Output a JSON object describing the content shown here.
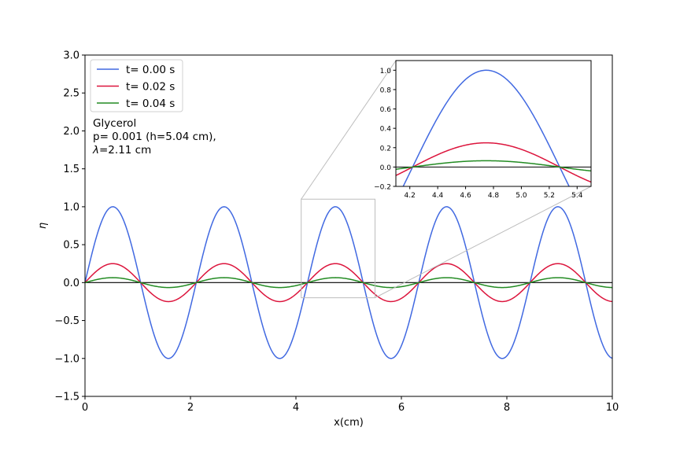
{
  "chart_data": {
    "type": "line",
    "xlabel": "x(cm)",
    "ylabel": "η",
    "xlim": [
      0,
      10
    ],
    "ylim": [
      -1.5,
      3.0
    ],
    "xticks": [
      0,
      2,
      4,
      6,
      8,
      10
    ],
    "yticks": [
      -1.5,
      -1.0,
      -0.5,
      0.0,
      0.5,
      1.0,
      1.5,
      2.0,
      2.5,
      3.0
    ],
    "xtick_labels": [
      "0",
      "2",
      "4",
      "6",
      "8",
      "10"
    ],
    "ytick_labels": [
      "−1.5",
      "−1.0",
      "−0.5",
      "0.0",
      "0.5",
      "1.0",
      "1.5",
      "2.0",
      "2.5",
      "3.0"
    ],
    "grid": false,
    "legend_position": "top-left",
    "baseline": 0,
    "wave": {
      "wavelength_cm": 2.11,
      "shape": "sine"
    },
    "series": [
      {
        "name": "t= 0.00 s",
        "amplitude": 1.0,
        "color": "#4169e1"
      },
      {
        "name": "t= 0.02 s",
        "amplitude": 0.25,
        "color": "#dc143c"
      },
      {
        "name": "t= 0.04 s",
        "amplitude": 0.065,
        "color": "#228b22"
      }
    ],
    "annotation_lines": [
      "Glycerol",
      "p= 0.001 (h=5.04 cm),",
      "λ=2.11 cm"
    ],
    "inset": {
      "xlim": [
        4.1,
        5.5
      ],
      "ylim": [
        -0.2,
        1.1
      ],
      "xticks": [
        4.2,
        4.4,
        4.6,
        4.8,
        5.0,
        5.2,
        5.4
      ],
      "yticks": [
        -0.2,
        0.0,
        0.2,
        0.4,
        0.6,
        0.8,
        1.0
      ],
      "xtick_labels": [
        "4.2",
        "4.4",
        "4.6",
        "4.8",
        "5.0",
        "5.2",
        "5.4"
      ],
      "ytick_labels": [
        "−0.2",
        "0.0",
        "0.2",
        "0.4",
        "0.6",
        "0.8",
        "1.0"
      ],
      "zoom_region": {
        "x": [
          4.1,
          5.5
        ],
        "y": [
          -0.2,
          1.1
        ]
      }
    }
  }
}
